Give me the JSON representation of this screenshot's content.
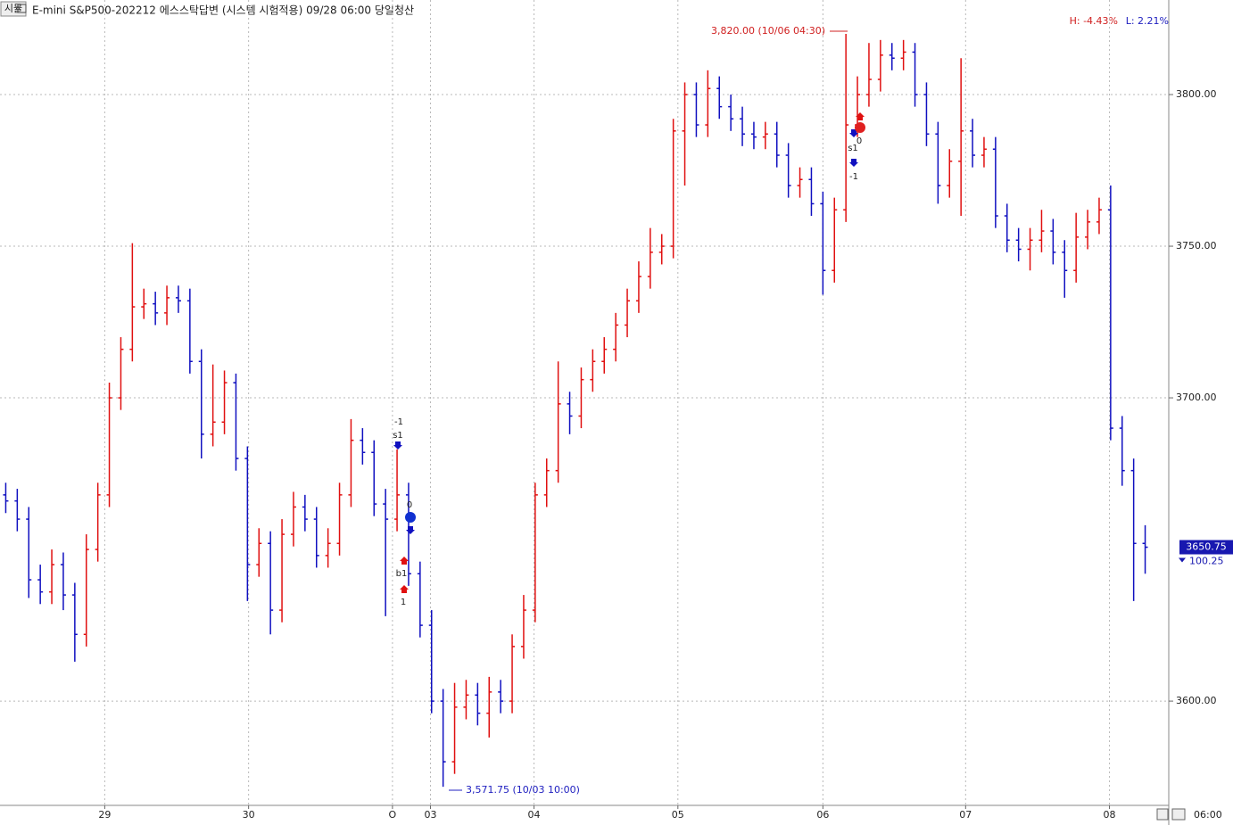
{
  "header": {
    "badge": "시뮬",
    "title": "E-mini S&P500-202212 에스스탁답변 (시스템 시험적용) 09/28 06:00 당일청산",
    "h_stat": "H: -4.43%",
    "l_stat": "L: 2.21%"
  },
  "chart_data": {
    "type": "ohlc",
    "up_color": "#e01010",
    "down_color": "#1010c0",
    "grid": true,
    "xlim": [
      -0.5,
      99.5
    ],
    "ylim": [
      3566.5,
      3825.3
    ],
    "yticks": [
      {
        "value": 3600,
        "label": "3600.00"
      },
      {
        "value": 3700,
        "label": "3700.00"
      },
      {
        "value": 3750,
        "label": "3750.00"
      },
      {
        "value": 3800,
        "label": "3800.00"
      }
    ],
    "xticks": [
      {
        "value": 8.6,
        "label": "29"
      },
      {
        "value": 21.1,
        "label": "30"
      },
      {
        "value": 33.6,
        "label": "O"
      },
      {
        "value": 36.9,
        "label": "03"
      },
      {
        "value": 45.9,
        "label": "04"
      },
      {
        "value": 58.4,
        "label": "05"
      },
      {
        "value": 71,
        "label": "06"
      },
      {
        "value": 83.4,
        "label": "07"
      },
      {
        "value": 95.9,
        "label": "08"
      }
    ],
    "open": [
      3668,
      3666,
      3660,
      3640,
      3636,
      3645,
      3635,
      3622,
      3650,
      3668,
      3700,
      3716,
      3730,
      3731,
      3728,
      3733,
      3732,
      3712,
      3688,
      3692,
      3705,
      3680,
      3645,
      3652,
      3630,
      3655,
      3664,
      3660,
      3648,
      3652,
      3668,
      3686,
      3682,
      3665,
      3660,
      3668,
      3642,
      3625,
      3600,
      3580,
      3598,
      3602,
      3596,
      3603,
      3600,
      3618,
      3630,
      3668,
      3676,
      3698,
      3694,
      3706,
      3712,
      3716,
      3724,
      3732,
      3740,
      3748,
      3750,
      3788,
      3800,
      3790,
      3802,
      3796,
      3792,
      3787,
      3786,
      3787,
      3780,
      3770,
      3772,
      3764,
      3742,
      3762,
      3790,
      3800,
      3805,
      3813,
      3812,
      3814,
      3800,
      3787,
      3770,
      3778,
      3788,
      3780,
      3782,
      3760,
      3752,
      3749,
      3752,
      3755,
      3748,
      3742,
      3753,
      3758,
      3762,
      3690,
      3676,
      3652
    ],
    "high": [
      3672,
      3670,
      3664,
      3645,
      3650,
      3649,
      3639,
      3655,
      3672,
      3705,
      3720,
      3751,
      3736,
      3735,
      3737,
      3737,
      3736,
      3716,
      3711,
      3709,
      3708,
      3684,
      3657,
      3656,
      3660,
      3669,
      3668,
      3664,
      3657,
      3672,
      3693,
      3690,
      3686,
      3670,
      3683,
      3672,
      3646,
      3630,
      3604,
      3606,
      3607,
      3606,
      3608,
      3607,
      3622,
      3635,
      3672,
      3680,
      3712,
      3702,
      3710,
      3716,
      3720,
      3728,
      3736,
      3745,
      3756,
      3754,
      3792,
      3804,
      3804,
      3808,
      3806,
      3800,
      3796,
      3791,
      3791,
      3791,
      3784,
      3776,
      3776,
      3768,
      3766,
      3820,
      3806,
      3817,
      3818,
      3817,
      3818,
      3817,
      3804,
      3791,
      3782,
      3812,
      3792,
      3786,
      3786,
      3764,
      3756,
      3756,
      3762,
      3759,
      3752,
      3761,
      3762,
      3766,
      3770,
      3694,
      3680,
      3658
    ],
    "low": [
      3662,
      3656,
      3634,
      3632,
      3632,
      3630,
      3613,
      3618,
      3646,
      3664,
      3696,
      3712,
      3726,
      3724,
      3724,
      3728,
      3708,
      3680,
      3684,
      3688,
      3676,
      3633,
      3641,
      3622,
      3626,
      3651,
      3656,
      3644,
      3644,
      3648,
      3664,
      3678,
      3661,
      3628,
      3656,
      3638,
      3621,
      3596,
      3571.75,
      3576,
      3594,
      3592,
      3588,
      3596,
      3596,
      3614,
      3626,
      3664,
      3672,
      3688,
      3690,
      3702,
      3708,
      3712,
      3720,
      3728,
      3736,
      3744,
      3746,
      3770,
      3786,
      3786,
      3792,
      3788,
      3783,
      3782,
      3782,
      3776,
      3766,
      3766,
      3760,
      3734,
      3738,
      3758,
      3786,
      3796,
      3801,
      3808,
      3808,
      3796,
      3783,
      3764,
      3766,
      3760,
      3776,
      3776,
      3756,
      3748,
      3745,
      3742,
      3748,
      3744,
      3733,
      3738,
      3749,
      3754,
      3686,
      3671,
      3633,
      3642
    ],
    "close": [
      3666,
      3660,
      3640,
      3636,
      3645,
      3635,
      3622,
      3650,
      3668,
      3700,
      3716,
      3730,
      3731,
      3728,
      3733,
      3732,
      3712,
      3688,
      3692,
      3705,
      3680,
      3645,
      3652,
      3630,
      3655,
      3664,
      3660,
      3648,
      3652,
      3668,
      3686,
      3682,
      3665,
      3660,
      3668,
      3642,
      3625,
      3600,
      3580,
      3598,
      3602,
      3596,
      3603,
      3600,
      3618,
      3630,
      3668,
      3676,
      3698,
      3694,
      3706,
      3712,
      3716,
      3724,
      3732,
      3740,
      3748,
      3750,
      3788,
      3800,
      3790,
      3802,
      3796,
      3792,
      3787,
      3786,
      3787,
      3780,
      3770,
      3772,
      3764,
      3742,
      3762,
      3790,
      3800,
      3805,
      3813,
      3812,
      3814,
      3800,
      3787,
      3770,
      3778,
      3788,
      3780,
      3782,
      3760,
      3752,
      3749,
      3752,
      3755,
      3748,
      3742,
      3753,
      3758,
      3762,
      3690,
      3676,
      3652,
      3650.75
    ],
    "high_label": "3,820.00 (10/06 04:30)",
    "low_label": "3,571.75 (10/03 10:00)",
    "last_price": 3650.75,
    "last_change": 100.25,
    "time_label": "06:00",
    "signals": [
      "-1",
      "s1",
      "0",
      "b1",
      "1",
      "s1",
      "-1",
      "0"
    ]
  }
}
